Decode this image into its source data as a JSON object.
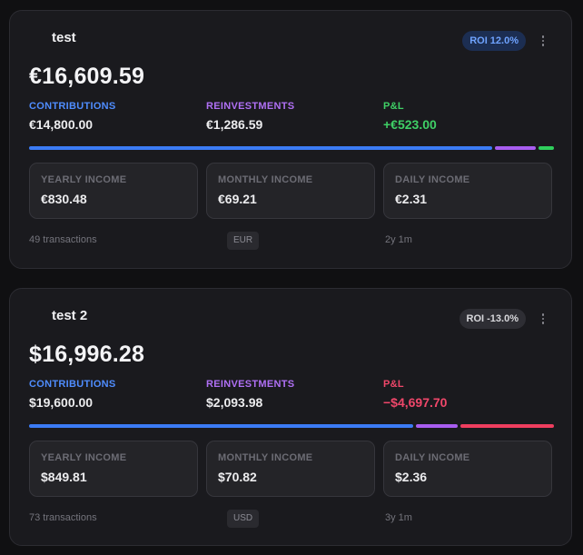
{
  "portfolios": [
    {
      "name": "test",
      "roi": "ROI 12.0%",
      "roi_sign": "positive",
      "total": "€16,609.59",
      "contributions": {
        "label": "CONTRIBUTIONS",
        "value": "€14,800.00"
      },
      "reinvestments": {
        "label": "REINVESTMENTS",
        "value": "€1,286.59"
      },
      "pnl": {
        "label": "P&L",
        "value": "+€523.00"
      },
      "allocation": {
        "contributions": 0.892,
        "reinvestments": 0.078,
        "pnl": 0.03
      },
      "income": [
        {
          "label": "YEARLY INCOME",
          "value": "€830.48"
        },
        {
          "label": "MONTHLY INCOME",
          "value": "€69.21"
        },
        {
          "label": "DAILY INCOME",
          "value": "€2.31"
        }
      ],
      "transactions": "49 transactions",
      "currency": "EUR",
      "duration": "2y 1m"
    },
    {
      "name": "test 2",
      "roi": "ROI -13.0%",
      "roi_sign": "negative",
      "total": "$16,996.28",
      "contributions": {
        "label": "CONTRIBUTIONS",
        "value": "$19,600.00"
      },
      "reinvestments": {
        "label": "REINVESTMENTS",
        "value": "$2,093.98"
      },
      "pnl": {
        "label": "P&L",
        "value": "−$4,697.70"
      },
      "allocation": {
        "contributions": 0.74,
        "reinvestments": 0.08,
        "pnl": 0.18
      },
      "income": [
        {
          "label": "YEARLY INCOME",
          "value": "$849.81"
        },
        {
          "label": "MONTHLY INCOME",
          "value": "$70.82"
        },
        {
          "label": "DAILY INCOME",
          "value": "$2.36"
        }
      ],
      "transactions": "73 transactions",
      "currency": "USD",
      "duration": "3y 1m"
    }
  ],
  "colors": {
    "contributions": "#3b7bf5",
    "reinvestments": "#a85df0",
    "positive": "#2fcf5c",
    "negative": "#ef3e5f"
  },
  "icons": {
    "menu": "vertical-ellipsis-icon"
  }
}
